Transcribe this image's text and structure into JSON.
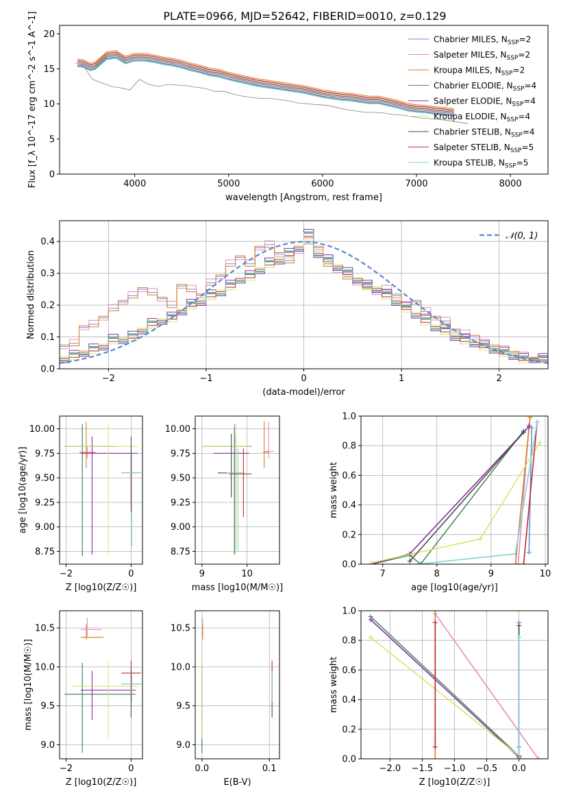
{
  "figure": {
    "title": "PLATE=0966, MJD=52642, FIBERID=0010, z=0.129"
  },
  "series_names": [
    "Chabrier MILES",
    "Salpeter MILES",
    "Kroupa MILES",
    "Chabrier ELODIE",
    "Salpeter ELODIE",
    "Kroupa ELODIE",
    "Chabrier STELIB",
    "Salpeter STELIB",
    "Kroupa STELIB"
  ],
  "series_nssp": [
    2,
    2,
    2,
    4,
    4,
    4,
    4,
    5,
    5
  ],
  "series_colors": [
    "#6a8fd6",
    "#e58bbf",
    "#d97a22",
    "#4e8a5a",
    "#8a2aa0",
    "#cfe96a",
    "#4a4a4a",
    "#c0272d",
    "#7fd3d6"
  ],
  "nssp_prefix": ", N",
  "nssp_sub": "SSP",
  "chart_data": [
    {
      "id": "spectrum",
      "type": "line",
      "xlabel": "wavelength [Angstrom, rest frame]",
      "ylabel": "Flux [f_λ 10^-17 erg cm^-2 s^-1 A^-1]",
      "xlim": [
        3200,
        8400
      ],
      "ylim": [
        0,
        21.2
      ],
      "xticks": [
        4000,
        5000,
        6000,
        7000,
        8000
      ],
      "yticks": [
        0,
        5,
        10,
        15,
        20
      ],
      "observed_color": "#7f7f7f",
      "observed": {
        "x": [
          3370,
          3450,
          3550,
          3650,
          3750,
          3850,
          3950,
          4050,
          4150,
          4250,
          4350,
          4450,
          4550,
          4650,
          4750,
          4850,
          4950,
          5050,
          5150,
          5250,
          5350,
          5450,
          5550,
          5650,
          5750,
          5850,
          5950,
          6050,
          6150,
          6250,
          6350,
          6450,
          6550,
          6650,
          6750,
          6850,
          6950,
          7050,
          7150,
          7250,
          7350,
          7450,
          7550
        ],
        "y": [
          15.8,
          15.5,
          13.5,
          13.0,
          12.5,
          12.3,
          12.0,
          13.5,
          12.8,
          12.5,
          12.8,
          12.7,
          12.6,
          12.4,
          12.2,
          11.8,
          11.8,
          11.4,
          11.1,
          10.9,
          10.8,
          10.8,
          10.6,
          10.4,
          10.1,
          10.0,
          9.9,
          9.8,
          9.5,
          9.2,
          9.0,
          8.8,
          8.8,
          8.7,
          8.5,
          8.4,
          8.2,
          8.0,
          7.9,
          7.8,
          7.6,
          7.4,
          7.2
        ]
      },
      "models": {
        "x": [
          3390,
          3450,
          3530,
          3580,
          3700,
          3800,
          3900,
          4000,
          4100,
          4200,
          4300,
          4400,
          4500,
          4600,
          4700,
          4800,
          4900,
          5000,
          5100,
          5200,
          5300,
          5400,
          5500,
          5600,
          5700,
          5800,
          5900,
          6000,
          6100,
          6200,
          6300,
          6400,
          6500,
          6600,
          6700,
          6800,
          6900,
          7000,
          7100,
          7200,
          7300,
          7400
        ],
        "y": [
          15.8,
          15.7,
          15.2,
          15.4,
          16.8,
          17.0,
          16.2,
          16.6,
          16.6,
          16.4,
          16.1,
          15.9,
          15.6,
          15.2,
          14.9,
          14.5,
          14.3,
          13.9,
          13.6,
          13.3,
          13.0,
          12.8,
          12.6,
          12.4,
          12.2,
          12.0,
          11.7,
          11.4,
          11.2,
          11.0,
          10.9,
          10.7,
          10.5,
          10.5,
          10.2,
          9.9,
          9.5,
          9.3,
          9.2,
          9.0,
          8.9,
          8.7
        ],
        "offsets": [
          -0.4,
          0.3,
          0.6,
          -0.3,
          -0.1,
          0.2,
          0.1,
          0.4,
          -0.5
        ]
      }
    },
    {
      "id": "residuals",
      "type": "step",
      "xlabel": "(data-model)/error",
      "ylabel": "Normed distribution",
      "xlim": [
        -2.5,
        2.5
      ],
      "ylim": [
        0,
        0.465
      ],
      "xticks": [
        -2,
        -1,
        0,
        1,
        2
      ],
      "yticks": [
        0.0,
        0.1,
        0.2,
        0.3,
        0.4
      ],
      "legend_label": "𝒩(0, 1)",
      "legend_color": "#5b85cf",
      "bin_edges_start": -2.5,
      "bin_width": 0.1,
      "hist_wide": [
        0.07,
        0.08,
        0.13,
        0.14,
        0.16,
        0.19,
        0.21,
        0.23,
        0.25,
        0.24,
        0.22,
        0.2,
        0.26,
        0.25,
        0.23,
        0.27,
        0.29,
        0.33,
        0.35,
        0.33,
        0.38,
        0.39,
        0.36,
        0.34,
        0.37,
        0.4,
        0.38,
        0.33,
        0.31,
        0.29,
        0.27,
        0.26,
        0.24,
        0.25,
        0.23,
        0.2,
        0.21,
        0.18,
        0.16,
        0.15,
        0.12,
        0.11,
        0.1,
        0.08,
        0.07,
        0.06,
        0.05,
        0.04,
        0.03,
        0.03
      ],
      "hist_narrow": [
        0.03,
        0.04,
        0.05,
        0.06,
        0.07,
        0.09,
        0.09,
        0.1,
        0.12,
        0.14,
        0.15,
        0.16,
        0.18,
        0.2,
        0.21,
        0.23,
        0.24,
        0.26,
        0.28,
        0.29,
        0.31,
        0.33,
        0.34,
        0.36,
        0.38,
        0.42,
        0.36,
        0.34,
        0.32,
        0.3,
        0.28,
        0.26,
        0.25,
        0.23,
        0.21,
        0.19,
        0.17,
        0.15,
        0.13,
        0.12,
        0.1,
        0.09,
        0.08,
        0.07,
        0.06,
        0.05,
        0.04,
        0.03,
        0.03,
        0.03
      ],
      "hist_offsets": [
        0.0,
        0.012,
        -0.008,
        0.01,
        0.018,
        -0.012,
        0.006,
        -0.004,
        0.008
      ]
    },
    {
      "id": "age_vs_z",
      "type": "errorbar",
      "xlabel": "Z [log10(Z/Z☉)]",
      "ylabel": "age  [log10(age/yr)]",
      "xlim": [
        -2.2,
        0.35
      ],
      "ylim": [
        8.62,
        10.13
      ],
      "xticks": [
        -2,
        0
      ],
      "yticks": [
        8.75,
        9.0,
        9.25,
        9.5,
        9.75,
        10.0
      ],
      "points": [
        {
          "s": 0,
          "x": -1.5,
          "y": 9.82,
          "xe": [
            -2.05,
            -0.5
          ],
          "ye": [
            8.7,
            10.05
          ]
        },
        {
          "s": 1,
          "x": -1.35,
          "y": 9.76,
          "xe": [
            -1.55,
            -1.1
          ],
          "ye": [
            9.7,
            9.82
          ]
        },
        {
          "s": 2,
          "x": -1.38,
          "y": 9.76,
          "xe": [
            -1.6,
            -1.1
          ],
          "ye": [
            9.6,
            10.07
          ]
        },
        {
          "s": 3,
          "x": -1.5,
          "y": 9.82,
          "xe": [
            -2.05,
            -0.5
          ],
          "ye": [
            8.7,
            10.04
          ]
        },
        {
          "s": 4,
          "x": -1.2,
          "y": 9.75,
          "xe": [
            -1.55,
            0.2
          ],
          "ye": [
            8.72,
            9.92
          ]
        },
        {
          "s": 5,
          "x": -0.7,
          "y": 9.82,
          "xe": [
            -2.05,
            0.2
          ],
          "ye": [
            8.72,
            10.05
          ]
        },
        {
          "s": 6,
          "x": 0.0,
          "y": 9.55,
          "xe": [
            -0.3,
            0.3
          ],
          "ye": [
            9.2,
            9.92
          ]
        },
        {
          "s": 7,
          "x": 0.0,
          "y": 9.55,
          "xe": [
            -0.3,
            0.3
          ],
          "ye": [
            9.15,
            9.7
          ]
        },
        {
          "s": 8,
          "x": 0.02,
          "y": 9.55,
          "xe": [
            -0.3,
            0.3
          ],
          "ye": [
            8.8,
            9.75
          ]
        }
      ]
    },
    {
      "id": "age_vs_mass",
      "type": "errorbar",
      "xlabel": "mass [log10(M/M☉)]",
      "ylabel": "",
      "xlim": [
        8.85,
        10.72
      ],
      "ylim": [
        8.62,
        10.13
      ],
      "xticks": [
        9,
        10
      ],
      "yticks": [
        8.75,
        9.0,
        9.25,
        9.5,
        9.75,
        10.0
      ],
      "points": [
        {
          "s": 0,
          "x": 9.72,
          "y": 9.82,
          "xe": [
            9.0,
            10.1
          ],
          "ye": [
            8.72,
            10.05
          ]
        },
        {
          "s": 1,
          "x": 10.48,
          "y": 9.77,
          "xe": [
            10.38,
            10.6
          ],
          "ye": [
            9.7,
            10.07
          ]
        },
        {
          "s": 2,
          "x": 10.38,
          "y": 9.76,
          "xe": [
            10.35,
            10.5
          ],
          "ye": [
            9.6,
            10.08
          ]
        },
        {
          "s": 3,
          "x": 9.72,
          "y": 9.82,
          "xe": [
            9.0,
            10.05
          ],
          "ye": [
            8.72,
            10.02
          ]
        },
        {
          "s": 4,
          "x": 9.75,
          "y": 9.75,
          "xe": [
            9.25,
            10.05
          ],
          "ye": [
            8.74,
            9.92
          ]
        },
        {
          "s": 5,
          "x": 9.75,
          "y": 9.82,
          "xe": [
            9.0,
            10.05
          ],
          "ye": [
            8.72,
            10.05
          ]
        },
        {
          "s": 6,
          "x": 9.65,
          "y": 9.55,
          "xe": [
            9.35,
            9.95
          ],
          "ye": [
            9.3,
            9.95
          ]
        },
        {
          "s": 7,
          "x": 9.92,
          "y": 9.54,
          "xe": [
            9.6,
            10.1
          ],
          "ye": [
            9.1,
            9.8
          ]
        },
        {
          "s": 8,
          "x": 9.8,
          "y": 9.55,
          "xe": [
            9.55,
            9.95
          ],
          "ye": [
            8.75,
            9.8
          ]
        }
      ]
    },
    {
      "id": "weight_vs_age",
      "type": "line",
      "xlabel": "age  [log10(age/yr)]",
      "ylabel": "mass weight",
      "xlim": [
        6.6,
        10.05
      ],
      "ylim": [
        0.0,
        1.0
      ],
      "xticks": [
        7,
        8,
        9,
        10
      ],
      "yticks": [
        0.0,
        0.2,
        0.4,
        0.6,
        0.8,
        1.0
      ],
      "lines": [
        {
          "s": 0,
          "x": [
            9.7,
            9.75
          ],
          "y": [
            0.08,
            0.92
          ]
        },
        {
          "s": 1,
          "x": [
            9.5,
            9.7
          ],
          "y": [
            0.0,
            0.94
          ]
        },
        {
          "s": 2,
          "x": [
            9.45,
            9.72
          ],
          "y": [
            0.0,
            0.99
          ]
        },
        {
          "s": 3,
          "x": [
            6.8,
            7.5,
            7.7,
            9.6
          ],
          "y": [
            0.0,
            0.06,
            0.0,
            0.9
          ]
        },
        {
          "s": 4,
          "x": [
            6.8,
            7.5,
            9.7
          ],
          "y": [
            0.0,
            0.07,
            0.93
          ]
        },
        {
          "s": 5,
          "x": [
            6.8,
            7.55,
            8.8,
            9.9
          ],
          "y": [
            0.01,
            0.07,
            0.17,
            0.82
          ]
        },
        {
          "s": 6,
          "x": [
            7.5,
            9.6
          ],
          "y": [
            0.02,
            0.89
          ]
        },
        {
          "s": 7,
          "x": [
            9.6,
            9.85
          ],
          "y": [
            0.0,
            0.96
          ]
        },
        {
          "s": 8,
          "x": [
            7.65,
            9.45,
            9.85
          ],
          "y": [
            0.0,
            0.07,
            0.96
          ]
        }
      ]
    },
    {
      "id": "mass_vs_z",
      "type": "errorbar",
      "xlabel": "Z [log10(Z/Z☉)]",
      "ylabel": "mass [log10(M/M☉)]",
      "xlim": [
        -2.2,
        0.35
      ],
      "ylim": [
        8.82,
        10.72
      ],
      "xticks": [
        -2,
        0
      ],
      "yticks": [
        9.0,
        9.5,
        10.0,
        10.5
      ],
      "points": [
        {
          "s": 0,
          "x": -1.5,
          "y": 9.65,
          "xe": [
            -2.05,
            0.15
          ],
          "ye": [
            8.9,
            10.05
          ]
        },
        {
          "s": 1,
          "x": -1.35,
          "y": 10.48,
          "xe": [
            -1.55,
            -0.9
          ],
          "ye": [
            10.38,
            10.63
          ]
        },
        {
          "s": 2,
          "x": -1.38,
          "y": 10.38,
          "xe": [
            -1.55,
            -0.85
          ],
          "ye": [
            10.35,
            10.55
          ]
        },
        {
          "s": 3,
          "x": -1.5,
          "y": 9.65,
          "xe": [
            -2.05,
            0.1
          ],
          "ye": [
            8.9,
            10.05
          ]
        },
        {
          "s": 4,
          "x": -1.2,
          "y": 9.7,
          "xe": [
            -1.55,
            0.15
          ],
          "ye": [
            9.32,
            9.95
          ]
        },
        {
          "s": 5,
          "x": -0.7,
          "y": 9.75,
          "xe": [
            -1.8,
            0.2
          ],
          "ye": [
            9.08,
            10.07
          ]
        },
        {
          "s": 6,
          "x": 0.0,
          "y": 9.78,
          "xe": [
            -0.3,
            0.3
          ],
          "ye": [
            9.35,
            9.98
          ]
        },
        {
          "s": 7,
          "x": 0.0,
          "y": 9.92,
          "xe": [
            -0.3,
            0.3
          ],
          "ye": [
            9.58,
            10.08
          ]
        },
        {
          "s": 8,
          "x": 0.02,
          "y": 9.78,
          "xe": [
            -0.3,
            0.3
          ],
          "ye": [
            9.55,
            9.95
          ]
        }
      ]
    },
    {
      "id": "mass_vs_ebv",
      "type": "errorbar",
      "xlabel": "E(B-V)",
      "ylabel": "",
      "xlim": [
        -0.01,
        0.115
      ],
      "ylim": [
        8.82,
        10.72
      ],
      "xticks": [
        0.0,
        0.1
      ],
      "yticks": [
        9.0,
        9.5,
        10.0,
        10.5
      ],
      "points": [
        {
          "s": 0,
          "x": 0.0,
          "y": 9.65,
          "xe": [
            0.0,
            0.0
          ],
          "ye": [
            8.9,
            10.05
          ]
        },
        {
          "s": 1,
          "x": 0.001,
          "y": 10.48,
          "xe": [
            0.0,
            0.0
          ],
          "ye": [
            10.38,
            10.63
          ]
        },
        {
          "s": 2,
          "x": 0.001,
          "y": 10.38,
          "xe": [
            0.0,
            0.0
          ],
          "ye": [
            10.35,
            10.55
          ]
        },
        {
          "s": 3,
          "x": 0.0,
          "y": 9.65,
          "xe": [
            0.0,
            0.0
          ],
          "ye": [
            8.9,
            10.05
          ]
        },
        {
          "s": 4,
          "x": 0.0,
          "y": 9.7,
          "xe": [
            0.0,
            0.0
          ],
          "ye": [
            9.32,
            9.95
          ]
        },
        {
          "s": 5,
          "x": 0.0,
          "y": 9.75,
          "xe": [
            0.0,
            0.0
          ],
          "ye": [
            9.08,
            10.07
          ]
        },
        {
          "s": 6,
          "x": 0.104,
          "y": 9.78,
          "xe": [
            0.104,
            0.104
          ],
          "ye": [
            9.35,
            9.98
          ]
        },
        {
          "s": 7,
          "x": 0.104,
          "y": 9.92,
          "xe": [
            0.104,
            0.104
          ],
          "ye": [
            9.58,
            10.08
          ]
        },
        {
          "s": 8,
          "x": 0.104,
          "y": 9.78,
          "xe": [
            0.104,
            0.104
          ],
          "ye": [
            9.55,
            9.95
          ]
        }
      ]
    },
    {
      "id": "weight_vs_z",
      "type": "line",
      "xlabel": "Z [log10(Z/Z☉)]",
      "ylabel": "mass weight",
      "xlim": [
        -2.45,
        0.45
      ],
      "ylim": [
        0.0,
        1.0
      ],
      "xticks": [
        -2.0,
        -1.5,
        -1.0,
        -0.5,
        0.0
      ],
      "yticks": [
        0.0,
        0.2,
        0.4,
        0.6,
        0.8,
        1.0
      ],
      "lines": [
        {
          "s": 0,
          "x": [
            0.0,
            0.0
          ],
          "y": [
            0.08,
            0.92
          ]
        },
        {
          "s": 1,
          "x": [
            -1.3,
            0.3
          ],
          "y": [
            0.98,
            0.0
          ]
        },
        {
          "s": 2,
          "x": [
            -1.3,
            -1.3
          ],
          "y": [
            0.0,
            1.0
          ]
        },
        {
          "s": 3,
          "x": [
            -2.3,
            0.0
          ],
          "y": [
            0.96,
            0.02
          ]
        },
        {
          "s": 4,
          "x": [
            -2.3,
            0.0
          ],
          "y": [
            0.94,
            0.01
          ]
        },
        {
          "s": 5,
          "x": [
            -2.3,
            0.0
          ],
          "y": [
            0.82,
            0.02
          ]
        },
        {
          "s": 6,
          "x": [
            0.0,
            0.0
          ],
          "y": [
            0.02,
            0.9
          ]
        },
        {
          "s": 7,
          "x": [
            -1.3,
            -1.3
          ],
          "y": [
            0.08,
            0.92
          ]
        },
        {
          "s": 8,
          "x": [
            0.0,
            0.0
          ],
          "y": [
            0.0,
            0.82
          ]
        }
      ]
    }
  ]
}
